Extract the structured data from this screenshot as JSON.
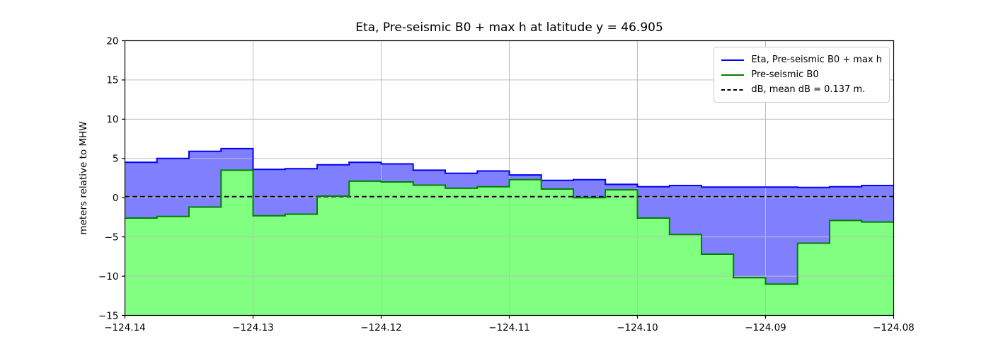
{
  "figure": {
    "background": "#ffffff"
  },
  "chart_data": {
    "type": "area",
    "title": "Eta, Pre-seismic B0 + max h at latitude y = 46.905",
    "xlabel": "",
    "ylabel": "meters relative to MHW",
    "xlim": [
      -124.14,
      -124.08
    ],
    "ylim": [
      -15,
      20
    ],
    "grid": true,
    "grid_color": "#bdbdbd",
    "axis_color": "#000000",
    "legend_position": "upper right",
    "x_ticks": [
      {
        "value": -124.14,
        "label": "−124.14"
      },
      {
        "value": -124.13,
        "label": "−124.13"
      },
      {
        "value": -124.12,
        "label": "−124.12"
      },
      {
        "value": -124.11,
        "label": "−124.11"
      },
      {
        "value": -124.1,
        "label": "−124.10"
      },
      {
        "value": -124.09,
        "label": "−124.09"
      },
      {
        "value": -124.08,
        "label": "−124.08"
      }
    ],
    "y_ticks": [
      {
        "value": 20,
        "label": "20"
      },
      {
        "value": 15,
        "label": "15"
      },
      {
        "value": 10,
        "label": "10"
      },
      {
        "value": 5,
        "label": "5"
      },
      {
        "value": 0,
        "label": "0"
      },
      {
        "value": -5,
        "label": "−5"
      },
      {
        "value": -10,
        "label": "−10"
      },
      {
        "value": -15,
        "label": "−15"
      }
    ],
    "step_edges": [
      -124.14,
      -124.1375,
      -124.135,
      -124.1325,
      -124.13,
      -124.1275,
      -124.125,
      -124.1225,
      -124.12,
      -124.1175,
      -124.115,
      -124.1125,
      -124.11,
      -124.1075,
      -124.105,
      -124.1025,
      -124.1,
      -124.0975,
      -124.095,
      -124.0925,
      -124.09,
      -124.0875,
      -124.085,
      -124.0825,
      -124.08
    ],
    "series": [
      {
        "name": "Eta, Pre-seismic B0 + max h",
        "style": "step",
        "color": "#0000ff",
        "fill": "#8080ff",
        "values": [
          4.5,
          5.0,
          5.9,
          6.25,
          3.6,
          3.7,
          4.2,
          4.5,
          4.3,
          3.5,
          3.1,
          3.4,
          2.9,
          2.2,
          2.3,
          1.7,
          1.4,
          1.55,
          1.35,
          1.35,
          1.35,
          1.3,
          1.4,
          1.55
        ]
      },
      {
        "name": "Pre-seismic B0",
        "style": "step",
        "color": "#008000",
        "fill": "#80ff80",
        "values": [
          -2.6,
          -2.4,
          -1.2,
          3.5,
          -2.3,
          -2.1,
          0.2,
          2.1,
          2.0,
          1.6,
          1.2,
          1.4,
          2.3,
          1.1,
          0.0,
          1.0,
          -2.6,
          -4.7,
          -7.2,
          -10.2,
          -11.0,
          -5.8,
          -2.9,
          -3.1
        ]
      },
      {
        "name": "dB, mean dB = 0.137 m.",
        "style": "dashed-hline",
        "color": "#000000",
        "value": 0.137
      }
    ]
  }
}
